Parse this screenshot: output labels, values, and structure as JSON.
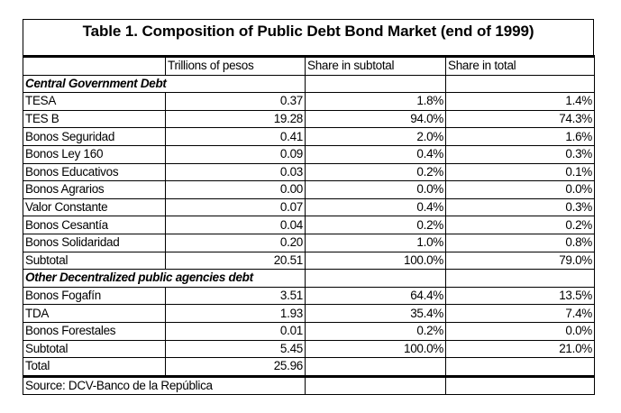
{
  "title": "Table 1. Composition of Public Debt Bond Market (end of 1999)",
  "columns": [
    "",
    "Trillions of pesos",
    "Share in subtotal",
    "Share in total"
  ],
  "sections": [
    {
      "heading": "Central Government Debt",
      "rows": [
        {
          "label": "TESA",
          "pesos": "0.37",
          "subtotal_share": "1.8%",
          "total_share": "1.4%"
        },
        {
          "label": "TES B",
          "pesos": "19.28",
          "subtotal_share": "94.0%",
          "total_share": "74.3%"
        },
        {
          "label": "Bonos Seguridad",
          "pesos": "0.41",
          "subtotal_share": "2.0%",
          "total_share": "1.6%"
        },
        {
          "label": "Bonos Ley 160",
          "pesos": "0.09",
          "subtotal_share": "0.4%",
          "total_share": "0.3%"
        },
        {
          "label": "Bonos Educativos",
          "pesos": "0.03",
          "subtotal_share": "0.2%",
          "total_share": "0.1%"
        },
        {
          "label": "Bonos Agrarios",
          "pesos": "0.00",
          "subtotal_share": "0.0%",
          "total_share": "0.0%"
        },
        {
          "label": "Valor Constante",
          "pesos": "0.07",
          "subtotal_share": "0.4%",
          "total_share": "0.3%"
        },
        {
          "label": "Bonos Cesantía",
          "pesos": "0.04",
          "subtotal_share": "0.2%",
          "total_share": "0.2%"
        },
        {
          "label": "Bonos Solidaridad",
          "pesos": "0.20",
          "subtotal_share": "1.0%",
          "total_share": "0.8%"
        },
        {
          "label": "Subtotal",
          "pesos": "20.51",
          "subtotal_share": "100.0%",
          "total_share": "79.0%"
        }
      ]
    },
    {
      "heading": "Other Decentralized public agencies debt",
      "rows": [
        {
          "label": "Bonos Fogafín",
          "pesos": "3.51",
          "subtotal_share": "64.4%",
          "total_share": "13.5%"
        },
        {
          "label": "TDA",
          "pesos": "1.93",
          "subtotal_share": "35.4%",
          "total_share": "7.4%"
        },
        {
          "label": "Bonos Forestales",
          "pesos": "0.01",
          "subtotal_share": "0.2%",
          "total_share": "0.0%"
        },
        {
          "label": "Subtotal",
          "pesos": "5.45",
          "subtotal_share": "100.0%",
          "total_share": "21.0%"
        }
      ]
    }
  ],
  "total": {
    "label": "Total",
    "pesos": "25.96"
  },
  "source": "Source: DCV-Banco de la República"
}
